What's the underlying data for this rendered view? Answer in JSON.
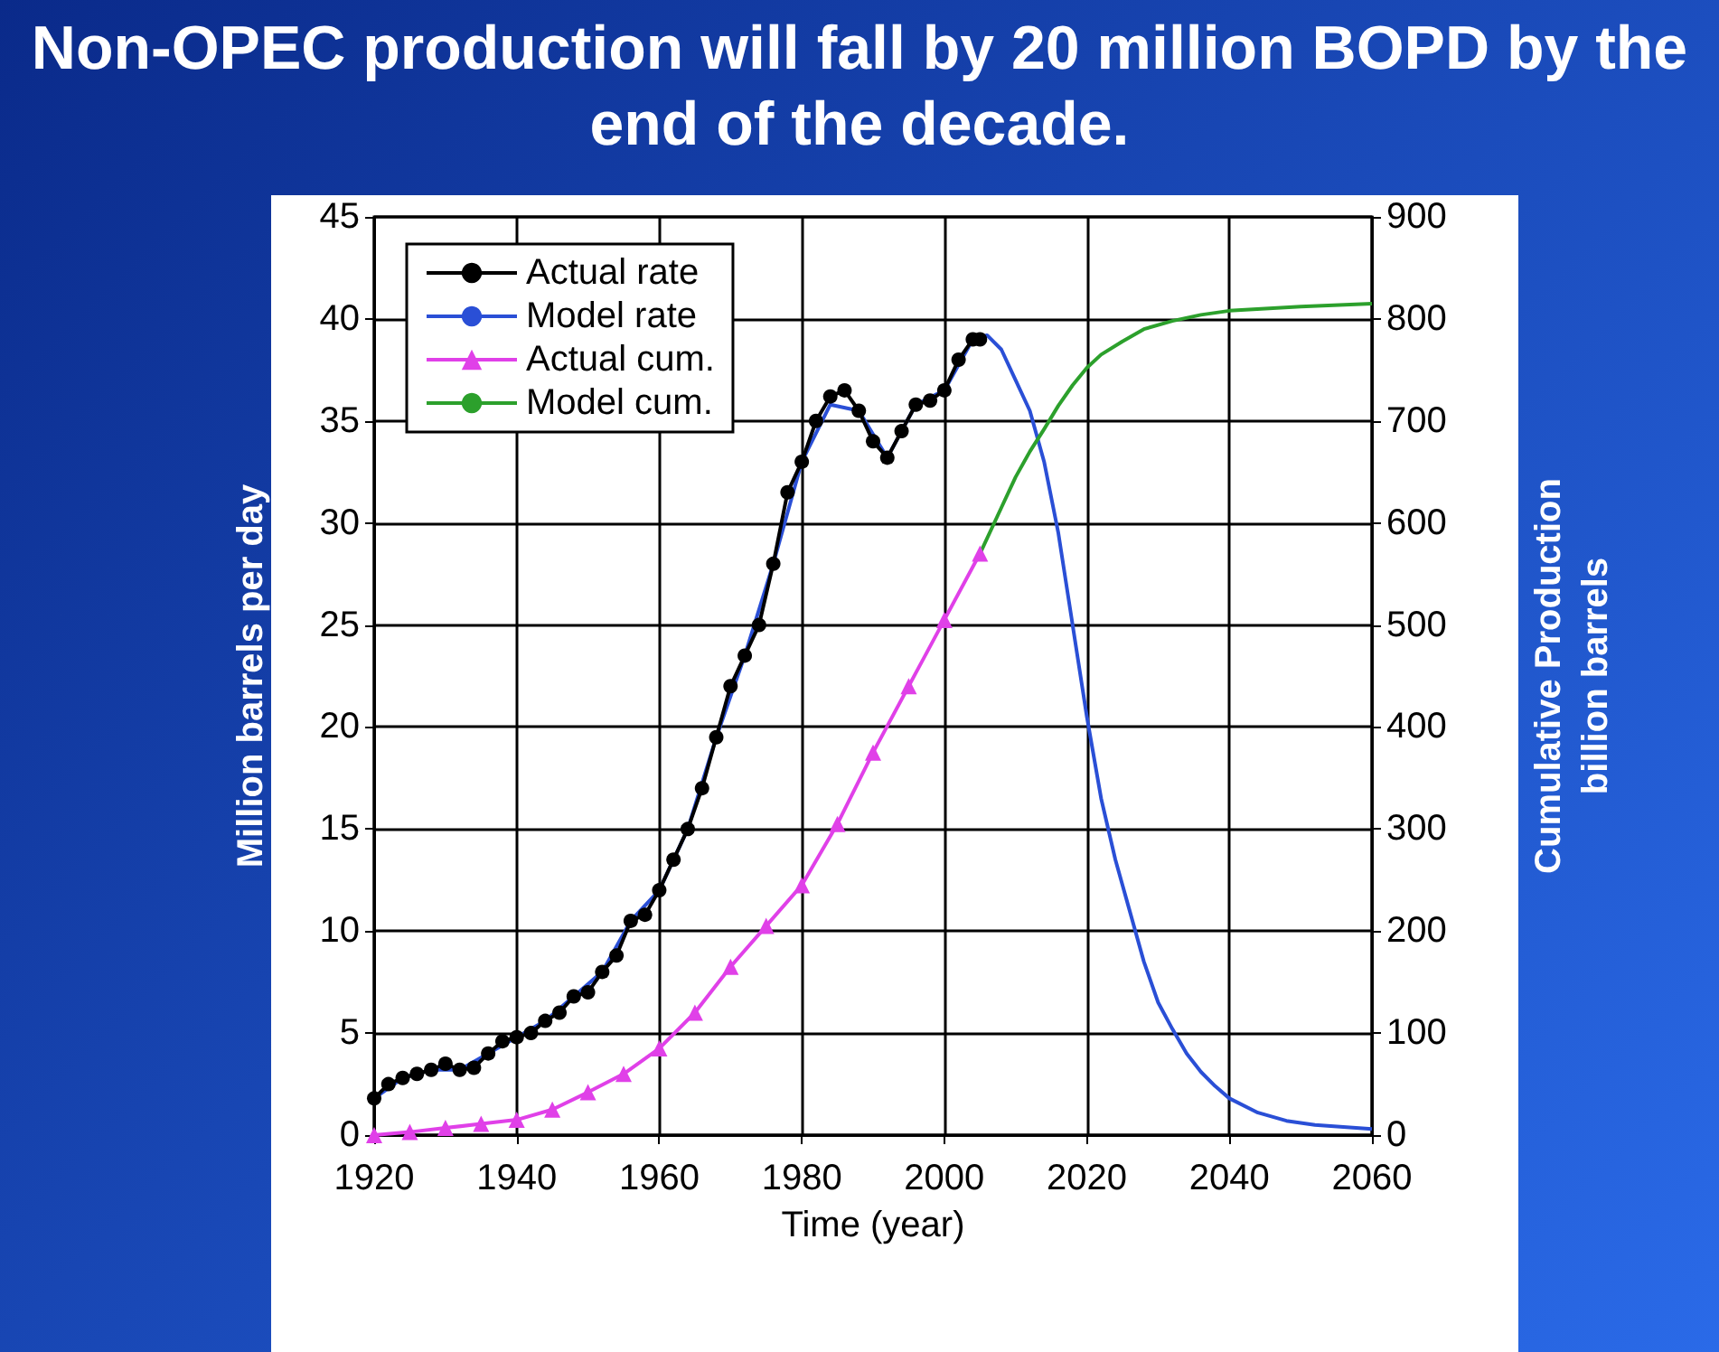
{
  "chart_data": {
    "type": "line",
    "title": "Non-OPEC production will fall by 20 million BOPD by the end of the decade.",
    "xlabel": "Time (year)",
    "ylabel": "Million barrels per day",
    "y2label": "Cumulative Production\nbillion barrels",
    "xlim": [
      1920,
      2060
    ],
    "xticks": [
      1920,
      1940,
      1960,
      1980,
      2000,
      2020,
      2040,
      2060
    ],
    "ylim": [
      0,
      45
    ],
    "yticks": [
      0,
      5,
      10,
      15,
      20,
      25,
      30,
      35,
      40,
      45
    ],
    "y2lim": [
      0,
      900
    ],
    "y2ticks": [
      0,
      100,
      200,
      300,
      400,
      500,
      600,
      700,
      800,
      900
    ],
    "grid": true,
    "legend": "top left",
    "line_style": "solid",
    "series": [
      {
        "name": "Actual rate",
        "color": "#000000",
        "marker": "circle",
        "x": [
          1920,
          1922,
          1924,
          1926,
          1928,
          1930,
          1932,
          1934,
          1936,
          1938,
          1940,
          1942,
          1944,
          1946,
          1948,
          1950,
          1952,
          1954,
          1956,
          1958,
          1960,
          1962,
          1964,
          1966,
          1968,
          1970,
          1972,
          1974,
          1976,
          1978,
          1980,
          1982,
          1984,
          1986,
          1988,
          1990,
          1992,
          1994,
          1996,
          1998,
          2000,
          2002,
          2004,
          2005
        ],
        "values": [
          1.8,
          2.5,
          2.8,
          3.0,
          3.2,
          3.5,
          3.2,
          3.3,
          4.0,
          4.6,
          4.8,
          5.0,
          5.6,
          6.0,
          6.8,
          7.0,
          8.0,
          8.8,
          10.5,
          10.8,
          12.0,
          13.5,
          15.0,
          17.0,
          19.5,
          22.0,
          23.5,
          25.0,
          28.0,
          31.5,
          33.0,
          35.0,
          36.2,
          36.5,
          35.5,
          34.0,
          33.2,
          34.5,
          35.8,
          36.0,
          36.5,
          38.0,
          39.0,
          39.0
        ]
      },
      {
        "name": "Model rate",
        "color": "#2a4fd6",
        "marker": "none",
        "x": [
          1920,
          1924,
          1928,
          1932,
          1936,
          1940,
          1944,
          1948,
          1952,
          1956,
          1960,
          1964,
          1968,
          1972,
          1976,
          1980,
          1984,
          1988,
          1992,
          1996,
          2000,
          2004,
          2006,
          2008,
          2010,
          2012,
          2014,
          2016,
          2018,
          2020,
          2022,
          2024,
          2026,
          2028,
          2030,
          2032,
          2034,
          2036,
          2038,
          2040,
          2044,
          2048,
          2052,
          2056,
          2060
        ],
        "values": [
          1.8,
          2.8,
          3.2,
          3.2,
          4.0,
          4.8,
          5.6,
          6.8,
          8.0,
          10.5,
          12.0,
          15.0,
          19.5,
          23.5,
          28.0,
          33.0,
          35.8,
          35.5,
          33.2,
          35.8,
          36.5,
          39.0,
          39.2,
          38.5,
          37.0,
          35.5,
          33.0,
          29.5,
          25.0,
          20.5,
          16.5,
          13.5,
          11.0,
          8.5,
          6.5,
          5.2,
          4.0,
          3.1,
          2.4,
          1.8,
          1.1,
          0.7,
          0.5,
          0.4,
          0.3
        ]
      },
      {
        "name": "Actual cum.",
        "color": "#e040e8",
        "marker": "triangle",
        "axis": "y2",
        "x": [
          1920,
          1925,
          1930,
          1935,
          1940,
          1945,
          1950,
          1955,
          1960,
          1965,
          1970,
          1975,
          1980,
          1985,
          1990,
          1995,
          2000,
          2005
        ],
        "values": [
          0,
          3,
          7,
          11,
          15,
          25,
          42,
          60,
          85,
          120,
          165,
          205,
          245,
          305,
          375,
          440,
          505,
          570
        ]
      },
      {
        "name": "Model cum.",
        "color": "#2ca02c",
        "marker": "none",
        "axis": "y2",
        "x": [
          2005,
          2008,
          2010,
          2012,
          2014,
          2016,
          2018,
          2020,
          2022,
          2025,
          2028,
          2032,
          2036,
          2040,
          2050,
          2060
        ],
        "values": [
          570,
          615,
          645,
          670,
          692,
          715,
          735,
          752,
          765,
          778,
          790,
          798,
          804,
          808,
          812,
          815
        ]
      }
    ]
  }
}
